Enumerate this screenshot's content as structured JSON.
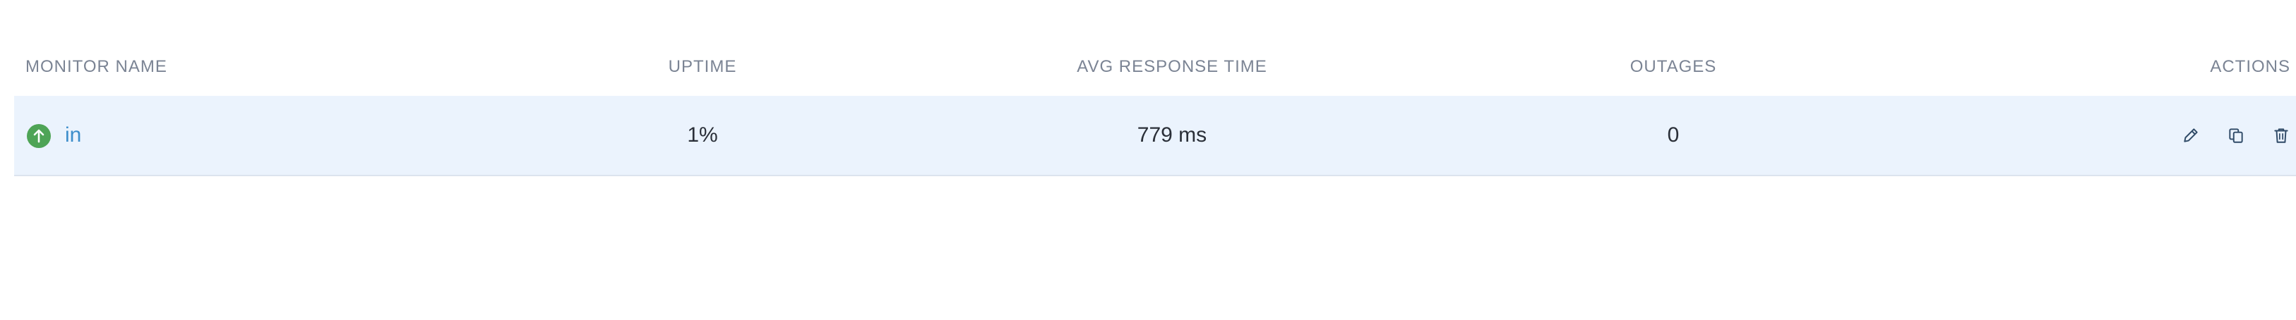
{
  "table": {
    "columns": {
      "name": "MONITOR NAME",
      "uptime": "UPTIME",
      "avg_response": "AVG RESPONSE TIME",
      "outages": "OUTAGES",
      "actions": "ACTIONS"
    },
    "rows": [
      {
        "status": "up",
        "status_icon": "arrow-up-icon",
        "name": "in",
        "uptime": "1%",
        "avg_response": "779 ms",
        "outages": "0",
        "actions": [
          "edit-icon",
          "duplicate-icon",
          "delete-icon"
        ]
      }
    ]
  },
  "colors": {
    "status_up": "#4ea456",
    "link": "#3d8ecb",
    "row_highlight": "#ebf3fd",
    "header_text": "#7b8494"
  }
}
